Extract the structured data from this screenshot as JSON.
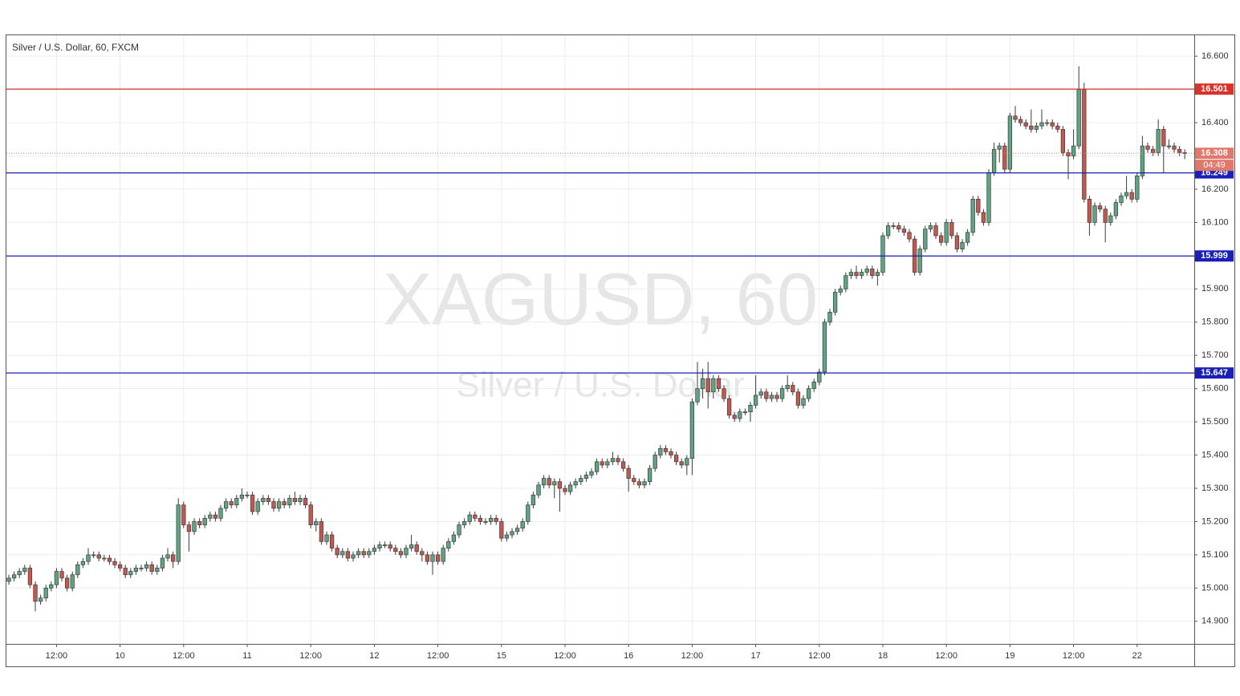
{
  "chart_data": {
    "type": "candlestick",
    "title": "Silver / U.S. Dollar, 60, FXCM",
    "watermark": "XAGUSD, 60",
    "watermark_subtitle": "Silver / U.S. Dollar",
    "up_color": "#5fa583",
    "down_color": "#c5584e",
    "grid": true,
    "ylim": [
      14.832,
      16.663
    ],
    "yticks": [
      {
        "value": 14.9,
        "label": "14.900"
      },
      {
        "value": 15.0,
        "label": "15.000"
      },
      {
        "value": 15.1,
        "label": "15.100"
      },
      {
        "value": 15.2,
        "label": "15.200"
      },
      {
        "value": 15.3,
        "label": "15.300"
      },
      {
        "value": 15.4,
        "label": "15.400"
      },
      {
        "value": 15.5,
        "label": "15.500"
      },
      {
        "value": 15.6,
        "label": "15.600"
      },
      {
        "value": 15.7,
        "label": "15.700"
      },
      {
        "value": 15.8,
        "label": "15.800"
      },
      {
        "value": 15.9,
        "label": "15.900"
      },
      {
        "value": 16.0,
        "label": "16.000"
      },
      {
        "value": 16.1,
        "label": "16.100"
      },
      {
        "value": 16.2,
        "label": "16.200"
      },
      {
        "value": 16.3,
        "label": "16.300"
      },
      {
        "value": 16.4,
        "label": "16.400"
      },
      {
        "value": 16.5,
        "label": "16.500"
      },
      {
        "value": 16.6,
        "label": "16.600"
      }
    ],
    "levels": [
      {
        "value": 16.501,
        "color": "#d8322a"
      },
      {
        "value": 16.249,
        "color": "#1a1fb8"
      },
      {
        "value": 15.999,
        "color": "#1a1fb8"
      },
      {
        "value": 15.647,
        "color": "#1a1fb8"
      }
    ],
    "last_price": 16.308,
    "last_price_color": "#e0786b",
    "countdown": "04:49",
    "categories": [
      null,
      null,
      null,
      null,
      null,
      null,
      null,
      null,
      null,
      "12:00",
      null,
      null,
      null,
      null,
      null,
      null,
      null,
      null,
      null,
      null,
      null,
      "10",
      null,
      null,
      null,
      null,
      null,
      null,
      null,
      null,
      null,
      null,
      null,
      "12:00",
      null,
      null,
      null,
      null,
      null,
      null,
      null,
      null,
      null,
      null,
      null,
      "11",
      null,
      null,
      null,
      null,
      null,
      null,
      null,
      null,
      null,
      null,
      null,
      "12:00",
      null,
      null,
      null,
      null,
      null,
      null,
      null,
      null,
      null,
      null,
      null,
      "12",
      null,
      null,
      null,
      null,
      null,
      null,
      null,
      null,
      null,
      null,
      null,
      "12:00",
      null,
      null,
      null,
      null,
      null,
      null,
      null,
      null,
      null,
      null,
      null,
      "15",
      null,
      null,
      null,
      null,
      null,
      null,
      null,
      null,
      null,
      null,
      null,
      "12:00",
      null,
      null,
      null,
      null,
      null,
      null,
      null,
      null,
      null,
      null,
      null,
      "16",
      null,
      null,
      null,
      null,
      null,
      null,
      null,
      null,
      null,
      null,
      null,
      "12:00",
      null,
      null,
      null,
      null,
      null,
      null,
      null,
      null,
      null,
      null,
      null,
      "17",
      null,
      null,
      null,
      null,
      null,
      null,
      null,
      null,
      null,
      null,
      null,
      "12:00",
      null,
      null,
      null,
      null,
      null,
      null,
      null,
      null,
      null,
      null,
      null,
      "18",
      null,
      null,
      null,
      null,
      null,
      null,
      null,
      null,
      null,
      null,
      null,
      "12:00",
      null,
      null,
      null,
      null,
      null,
      null,
      null,
      null,
      null,
      null,
      null,
      "19",
      null,
      null,
      null,
      null,
      null,
      null,
      null,
      null,
      null,
      null,
      null,
      "12:00",
      null,
      null,
      null,
      null,
      null,
      null,
      null,
      null,
      null,
      null,
      null,
      "22",
      null,
      null,
      null,
      null,
      null,
      null,
      null,
      null,
      null
    ],
    "series": [
      {
        "open": [
          15.02,
          15.03,
          15.04,
          15.05,
          15.06,
          15.01,
          14.96,
          14.97,
          15.0,
          15.01,
          15.05,
          15.03,
          15.0,
          15.04,
          15.07,
          15.08,
          15.1,
          15.1,
          15.09,
          15.09,
          15.08,
          15.07,
          15.06,
          15.04,
          15.05,
          15.06,
          15.06,
          15.07,
          15.05,
          15.06,
          15.09,
          15.1,
          15.08,
          15.25,
          15.19,
          15.17,
          15.2,
          15.19,
          15.21,
          15.22,
          15.21,
          15.24,
          15.26,
          15.25,
          15.27,
          15.28,
          15.28,
          15.23,
          15.26,
          15.27,
          15.26,
          15.24,
          15.26,
          15.25,
          15.27,
          15.26,
          15.27,
          15.25,
          15.19,
          15.2,
          15.14,
          15.16,
          15.12,
          15.1,
          15.11,
          15.09,
          15.1,
          15.11,
          15.1,
          15.11,
          15.12,
          15.13,
          15.13,
          15.12,
          15.11,
          15.1,
          15.12,
          15.13,
          15.11,
          15.1,
          15.08,
          15.1,
          15.08,
          15.12,
          15.14,
          15.16,
          15.19,
          15.2,
          15.22,
          15.21,
          15.2,
          15.2,
          15.21,
          15.2,
          15.15,
          15.16,
          15.17,
          15.18,
          15.2,
          15.25,
          15.28,
          15.31,
          15.33,
          15.31,
          15.32,
          15.3,
          15.29,
          15.31,
          15.32,
          15.33,
          15.34,
          15.35,
          15.38,
          15.37,
          15.38,
          15.39,
          15.38,
          15.36,
          15.33,
          15.32,
          15.31,
          15.32,
          15.36,
          15.4,
          15.42,
          15.41,
          15.4,
          15.38,
          15.37,
          15.39,
          15.56,
          15.6,
          15.63,
          15.59,
          15.63,
          15.6,
          15.57,
          15.52,
          15.51,
          15.53,
          15.53,
          15.55,
          15.58,
          15.59,
          15.57,
          15.58,
          15.57,
          15.6,
          15.61,
          15.59,
          15.55,
          15.57,
          15.6,
          15.62,
          15.65,
          15.8,
          15.83,
          15.89,
          15.9,
          15.94,
          15.95,
          15.94,
          15.95,
          15.96,
          15.94,
          15.95,
          16.06,
          16.09,
          16.09,
          16.08,
          16.07,
          16.05,
          15.95,
          16.02,
          16.08,
          16.09,
          16.06,
          16.04,
          16.1,
          16.06,
          16.02,
          16.04,
          16.07,
          16.17,
          16.13,
          16.1,
          16.25,
          16.32,
          16.33,
          16.26,
          16.42,
          16.41,
          16.4,
          16.39,
          16.38,
          16.39,
          16.4,
          16.4,
          16.39,
          16.38,
          16.31,
          16.3,
          16.33,
          16.5,
          16.17,
          16.1,
          16.15,
          16.14,
          16.1,
          16.12,
          16.16,
          16.18,
          16.19,
          16.17,
          16.24,
          16.33,
          16.32,
          16.31,
          16.38,
          16.33,
          16.33,
          16.32,
          16.31
        ],
        "high": [
          15.04,
          15.05,
          15.06,
          15.07,
          15.07,
          15.02,
          14.98,
          15.01,
          15.02,
          15.06,
          15.06,
          15.04,
          15.05,
          15.08,
          15.09,
          15.12,
          15.11,
          15.11,
          15.1,
          15.1,
          15.09,
          15.08,
          15.07,
          15.06,
          15.07,
          15.07,
          15.08,
          15.08,
          15.07,
          15.1,
          15.12,
          15.11,
          15.27,
          15.26,
          15.2,
          15.21,
          15.21,
          15.22,
          15.23,
          15.23,
          15.25,
          15.27,
          15.27,
          15.28,
          15.3,
          15.29,
          15.29,
          15.27,
          15.28,
          15.28,
          15.27,
          15.27,
          15.27,
          15.28,
          15.29,
          15.28,
          15.28,
          15.26,
          15.21,
          15.21,
          15.17,
          15.17,
          15.13,
          15.12,
          15.12,
          15.11,
          15.12,
          15.12,
          15.12,
          15.13,
          15.14,
          15.14,
          15.14,
          15.13,
          15.12,
          15.13,
          15.16,
          15.14,
          15.12,
          15.11,
          15.11,
          15.11,
          15.13,
          15.15,
          15.17,
          15.2,
          15.21,
          15.23,
          15.23,
          15.22,
          15.21,
          15.22,
          15.22,
          15.21,
          15.17,
          15.18,
          15.19,
          15.21,
          15.26,
          15.29,
          15.32,
          15.34,
          15.34,
          15.33,
          15.33,
          15.31,
          15.32,
          15.33,
          15.34,
          15.35,
          15.36,
          15.39,
          15.39,
          15.39,
          15.41,
          15.4,
          15.39,
          15.37,
          15.34,
          15.33,
          15.33,
          15.37,
          15.41,
          15.43,
          15.43,
          15.42,
          15.41,
          15.39,
          15.4,
          15.57,
          15.68,
          15.66,
          15.68,
          15.64,
          15.64,
          15.61,
          15.58,
          15.53,
          15.54,
          15.54,
          15.56,
          15.64,
          15.6,
          15.6,
          15.59,
          15.59,
          15.61,
          15.64,
          15.62,
          15.6,
          15.58,
          15.61,
          15.63,
          15.66,
          15.81,
          15.84,
          15.9,
          15.91,
          15.95,
          15.96,
          15.97,
          15.96,
          15.97,
          15.97,
          15.96,
          16.07,
          16.1,
          16.1,
          16.1,
          16.09,
          16.08,
          16.06,
          16.03,
          16.09,
          16.1,
          16.1,
          16.07,
          16.11,
          16.11,
          16.07,
          16.05,
          16.08,
          16.18,
          16.18,
          16.14,
          16.26,
          16.34,
          16.34,
          16.34,
          16.43,
          16.45,
          16.42,
          16.41,
          16.44,
          16.4,
          16.44,
          16.41,
          16.41,
          16.4,
          16.39,
          16.32,
          16.38,
          16.57,
          16.52,
          16.18,
          16.16,
          16.16,
          16.15,
          16.13,
          16.17,
          16.19,
          16.24,
          16.2,
          16.25,
          16.36,
          16.34,
          16.33,
          16.41,
          16.39,
          16.35,
          16.34,
          16.33,
          16.32
        ],
        "low": [
          15.01,
          15.02,
          15.03,
          15.04,
          15.0,
          14.93,
          14.95,
          14.96,
          14.99,
          15.0,
          15.02,
          14.99,
          14.99,
          15.03,
          15.06,
          15.07,
          15.09,
          15.08,
          15.08,
          15.07,
          15.06,
          15.05,
          15.03,
          15.03,
          15.04,
          15.05,
          15.05,
          15.04,
          15.04,
          15.05,
          15.08,
          15.06,
          15.07,
          15.18,
          15.11,
          15.16,
          15.18,
          15.18,
          15.2,
          15.2,
          15.2,
          15.23,
          15.24,
          15.24,
          15.26,
          15.27,
          15.22,
          15.22,
          15.25,
          15.25,
          15.23,
          15.23,
          15.24,
          15.24,
          15.25,
          15.25,
          15.24,
          15.18,
          15.17,
          15.13,
          15.13,
          15.11,
          15.09,
          15.09,
          15.08,
          15.08,
          15.09,
          15.09,
          15.09,
          15.1,
          15.11,
          15.12,
          15.11,
          15.1,
          15.09,
          15.09,
          15.11,
          15.1,
          15.08,
          15.07,
          15.04,
          15.07,
          15.07,
          15.11,
          15.13,
          15.15,
          15.18,
          15.19,
          15.2,
          15.19,
          15.19,
          15.19,
          15.19,
          15.14,
          15.14,
          15.15,
          15.16,
          15.17,
          15.19,
          15.24,
          15.27,
          15.3,
          15.3,
          15.27,
          15.23,
          15.28,
          15.28,
          15.3,
          15.31,
          15.32,
          15.33,
          15.34,
          15.36,
          15.36,
          15.37,
          15.37,
          15.35,
          15.29,
          15.31,
          15.3,
          15.3,
          15.31,
          15.35,
          15.39,
          15.4,
          15.39,
          15.37,
          15.36,
          15.34,
          15.34,
          15.55,
          15.57,
          15.54,
          15.57,
          15.59,
          15.56,
          15.51,
          15.5,
          15.5,
          15.52,
          15.5,
          15.54,
          15.57,
          15.56,
          15.56,
          15.56,
          15.56,
          15.59,
          15.58,
          15.54,
          15.54,
          15.56,
          15.59,
          15.61,
          15.64,
          15.79,
          15.82,
          15.88,
          15.89,
          15.93,
          15.93,
          15.93,
          15.94,
          15.93,
          15.91,
          15.94,
          16.05,
          16.08,
          16.07,
          16.06,
          16.04,
          15.94,
          15.94,
          16.01,
          16.07,
          16.05,
          16.03,
          16.03,
          16.05,
          16.01,
          16.01,
          16.03,
          16.06,
          16.12,
          16.09,
          16.09,
          16.24,
          16.28,
          16.25,
          16.25,
          16.4,
          16.39,
          16.38,
          16.37,
          16.37,
          16.38,
          16.39,
          16.38,
          16.37,
          16.3,
          16.23,
          16.29,
          16.32,
          16.16,
          16.06,
          16.09,
          16.13,
          16.04,
          16.09,
          16.11,
          16.15,
          16.17,
          16.16,
          16.16,
          16.23,
          16.31,
          16.3,
          16.3,
          16.25,
          16.32,
          16.31,
          16.3,
          16.29
        ],
        "close": [
          15.03,
          15.04,
          15.05,
          15.06,
          15.01,
          14.96,
          14.97,
          15.0,
          15.01,
          15.05,
          15.03,
          15.0,
          15.04,
          15.07,
          15.08,
          15.1,
          15.1,
          15.09,
          15.09,
          15.08,
          15.07,
          15.06,
          15.04,
          15.05,
          15.06,
          15.06,
          15.07,
          15.05,
          15.06,
          15.09,
          15.1,
          15.08,
          15.25,
          15.19,
          15.17,
          15.2,
          15.19,
          15.21,
          15.22,
          15.21,
          15.24,
          15.26,
          15.25,
          15.27,
          15.28,
          15.28,
          15.23,
          15.26,
          15.27,
          15.26,
          15.24,
          15.26,
          15.25,
          15.27,
          15.26,
          15.27,
          15.25,
          15.19,
          15.2,
          15.14,
          15.16,
          15.12,
          15.1,
          15.11,
          15.09,
          15.1,
          15.11,
          15.1,
          15.11,
          15.12,
          15.13,
          15.13,
          15.12,
          15.11,
          15.1,
          15.12,
          15.13,
          15.11,
          15.1,
          15.08,
          15.1,
          15.08,
          15.12,
          15.14,
          15.16,
          15.19,
          15.2,
          15.22,
          15.21,
          15.2,
          15.2,
          15.21,
          15.2,
          15.15,
          15.16,
          15.17,
          15.18,
          15.2,
          15.25,
          15.28,
          15.31,
          15.33,
          15.31,
          15.32,
          15.3,
          15.29,
          15.31,
          15.32,
          15.33,
          15.34,
          15.35,
          15.38,
          15.37,
          15.38,
          15.39,
          15.38,
          15.36,
          15.33,
          15.32,
          15.31,
          15.32,
          15.36,
          15.4,
          15.42,
          15.41,
          15.4,
          15.38,
          15.37,
          15.39,
          15.56,
          15.6,
          15.63,
          15.59,
          15.63,
          15.6,
          15.57,
          15.52,
          15.51,
          15.53,
          15.53,
          15.55,
          15.58,
          15.59,
          15.57,
          15.58,
          15.57,
          15.6,
          15.61,
          15.59,
          15.55,
          15.57,
          15.6,
          15.62,
          15.65,
          15.8,
          15.83,
          15.89,
          15.9,
          15.94,
          15.95,
          15.94,
          15.95,
          15.96,
          15.94,
          15.95,
          16.06,
          16.09,
          16.09,
          16.08,
          16.07,
          16.05,
          15.95,
          16.02,
          16.08,
          16.09,
          16.06,
          16.04,
          16.1,
          16.06,
          16.02,
          16.04,
          16.07,
          16.17,
          16.13,
          16.1,
          16.25,
          16.32,
          16.33,
          16.26,
          16.42,
          16.41,
          16.4,
          16.39,
          16.38,
          16.39,
          16.4,
          16.4,
          16.39,
          16.38,
          16.31,
          16.3,
          16.33,
          16.5,
          16.17,
          16.1,
          16.15,
          16.14,
          16.1,
          16.12,
          16.16,
          16.18,
          16.19,
          16.17,
          16.24,
          16.33,
          16.32,
          16.31,
          16.38,
          16.33,
          16.33,
          16.32,
          16.31,
          16.308
        ]
      }
    ]
  }
}
